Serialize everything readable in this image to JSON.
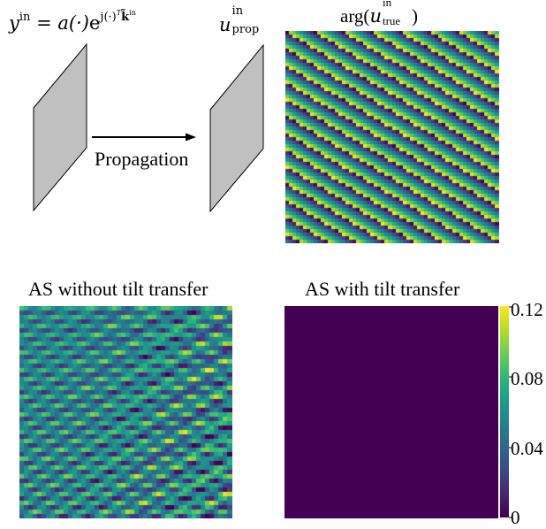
{
  "diagram": {
    "input_field": {
      "lhs": "y",
      "lhs_sup": "in",
      "equals": " = ",
      "amplitude": "a(·)",
      "exp_base": "e",
      "exp_power_main": "j(·)",
      "exp_power_T": "T",
      "exp_power_k": "k̃",
      "exp_power_k_sup": "in"
    },
    "propagated_field": {
      "symbol": "u",
      "sup": "in",
      "sub": "prop"
    },
    "arrow_label": "Propagation",
    "phase_plot_title": {
      "func": "arg(",
      "symbol": "u",
      "sup": "in",
      "sub": "true",
      "close": ")"
    }
  },
  "panels": {
    "left_title": "AS without tilt transfer",
    "right_title": "AS with tilt transfer"
  },
  "colorbar": {
    "ticks": [
      "0.12",
      "0.08",
      "0.04",
      "0"
    ],
    "max": 0.12,
    "min": 0
  },
  "colors": {
    "plane_fill": "#c0c0c0",
    "viridis_low": "#440154",
    "viridis_high": "#fde725"
  }
}
